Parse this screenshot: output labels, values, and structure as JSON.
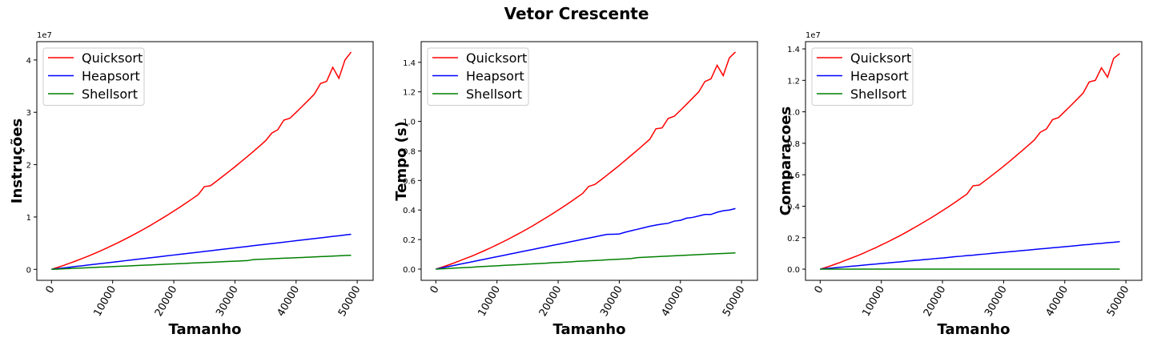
{
  "title": "Vetor Crescente",
  "chart_data": [
    {
      "type": "line",
      "ylabel": "Instruções",
      "xlabel": "Tamanho",
      "offset_label": "1e7",
      "legend": "upper left",
      "grid": false,
      "x": [
        0,
        1000,
        2000,
        3000,
        4000,
        5000,
        6000,
        7000,
        8000,
        9000,
        10000,
        11000,
        12000,
        13000,
        14000,
        15000,
        16000,
        17000,
        18000,
        19000,
        20000,
        21000,
        22000,
        23000,
        24000,
        25000,
        26000,
        27000,
        28000,
        29000,
        30000,
        31000,
        32000,
        33000,
        34000,
        35000,
        36000,
        37000,
        38000,
        39000,
        40000,
        41000,
        42000,
        43000,
        44000,
        45000,
        46000,
        47000,
        48000,
        49000
      ],
      "xlim": [
        -2400,
        52600
      ],
      "ylim": [
        -0.21,
        4.35
      ],
      "xticks": [
        0,
        10000,
        20000,
        30000,
        40000,
        50000
      ],
      "yticks": [
        0,
        1,
        2,
        3,
        4
      ],
      "series": [
        {
          "name": "Quicksort",
          "color": "#ff0000",
          "values": [
            0,
            0.037,
            0.076,
            0.118,
            0.161,
            0.206,
            0.252,
            0.301,
            0.352,
            0.405,
            0.46,
            0.516,
            0.575,
            0.635,
            0.698,
            0.762,
            0.828,
            0.897,
            0.967,
            1.039,
            1.113,
            1.189,
            1.267,
            1.346,
            1.428,
            1.58,
            1.598,
            1.685,
            1.775,
            1.866,
            1.959,
            2.055,
            2.152,
            2.251,
            2.352,
            2.455,
            2.6,
            2.667,
            2.85,
            2.887,
            2.999,
            3.114,
            3.23,
            3.349,
            3.55,
            3.592,
            3.86,
            3.65,
            4.0,
            4.15
          ]
        },
        {
          "name": "Heapsort",
          "color": "#0000ff",
          "values": [
            0,
            0.014,
            0.027,
            0.041,
            0.055,
            0.068,
            0.082,
            0.096,
            0.109,
            0.123,
            0.137,
            0.15,
            0.164,
            0.178,
            0.191,
            0.205,
            0.219,
            0.232,
            0.246,
            0.26,
            0.273,
            0.287,
            0.301,
            0.314,
            0.328,
            0.342,
            0.355,
            0.369,
            0.383,
            0.396,
            0.41,
            0.424,
            0.437,
            0.451,
            0.465,
            0.478,
            0.492,
            0.506,
            0.519,
            0.533,
            0.547,
            0.56,
            0.574,
            0.588,
            0.601,
            0.615,
            0.629,
            0.642,
            0.656,
            0.67
          ]
        },
        {
          "name": "Shellsort",
          "color": "#008000",
          "values": [
            0,
            0.005,
            0.01,
            0.016,
            0.021,
            0.026,
            0.031,
            0.036,
            0.042,
            0.047,
            0.052,
            0.057,
            0.062,
            0.068,
            0.073,
            0.078,
            0.083,
            0.088,
            0.094,
            0.099,
            0.104,
            0.109,
            0.114,
            0.12,
            0.125,
            0.13,
            0.135,
            0.14,
            0.146,
            0.151,
            0.156,
            0.161,
            0.166,
            0.186,
            0.191,
            0.196,
            0.201,
            0.206,
            0.212,
            0.217,
            0.222,
            0.227,
            0.232,
            0.238,
            0.243,
            0.248,
            0.253,
            0.258,
            0.264,
            0.269
          ]
        }
      ]
    },
    {
      "type": "line",
      "ylabel": "Tempo (s)",
      "xlabel": "Tamanho",
      "legend": "upper left",
      "grid": false,
      "x": [
        0,
        1000,
        2000,
        3000,
        4000,
        5000,
        6000,
        7000,
        8000,
        9000,
        10000,
        11000,
        12000,
        13000,
        14000,
        15000,
        16000,
        17000,
        18000,
        19000,
        20000,
        21000,
        22000,
        23000,
        24000,
        25000,
        26000,
        27000,
        28000,
        29000,
        30000,
        31000,
        32000,
        33000,
        34000,
        35000,
        36000,
        37000,
        38000,
        39000,
        40000,
        41000,
        42000,
        43000,
        44000,
        45000,
        46000,
        47000,
        48000,
        49000
      ],
      "xlim": [
        -2400,
        52600
      ],
      "ylim": [
        -0.076,
        1.54
      ],
      "xticks": [
        0,
        10000,
        20000,
        30000,
        40000,
        50000
      ],
      "yticks": [
        {
          "value": 0,
          "label": "0.0"
        },
        0.2,
        0.4,
        0.6,
        0.8,
        {
          "value": 1,
          "label": "1.0"
        },
        1.2,
        1.4
      ],
      "series": [
        {
          "name": "Quicksort",
          "color": "#ff0000",
          "values": [
            0,
            0.013,
            0.027,
            0.042,
            0.058,
            0.074,
            0.09,
            0.108,
            0.126,
            0.145,
            0.165,
            0.185,
            0.206,
            0.228,
            0.25,
            0.273,
            0.297,
            0.322,
            0.347,
            0.373,
            0.399,
            0.426,
            0.454,
            0.483,
            0.512,
            0.56,
            0.573,
            0.604,
            0.636,
            0.669,
            0.702,
            0.737,
            0.772,
            0.807,
            0.843,
            0.88,
            0.95,
            0.956,
            1.02,
            1.035,
            1.075,
            1.116,
            1.158,
            1.2,
            1.27,
            1.288,
            1.38,
            1.31,
            1.43,
            1.47
          ]
        },
        {
          "name": "Heapsort",
          "color": "#0000ff",
          "values": [
            0,
            0.008,
            0.017,
            0.025,
            0.034,
            0.042,
            0.05,
            0.059,
            0.067,
            0.076,
            0.084,
            0.092,
            0.101,
            0.109,
            0.118,
            0.126,
            0.134,
            0.143,
            0.151,
            0.16,
            0.168,
            0.176,
            0.185,
            0.193,
            0.202,
            0.21,
            0.218,
            0.227,
            0.235,
            0.236,
            0.238,
            0.25,
            0.26,
            0.27,
            0.28,
            0.29,
            0.298,
            0.305,
            0.31,
            0.325,
            0.33,
            0.345,
            0.35,
            0.36,
            0.37,
            0.37,
            0.385,
            0.395,
            0.4,
            0.41
          ]
        },
        {
          "name": "Shellsort",
          "color": "#008000",
          "values": [
            0,
            0.002,
            0.004,
            0.007,
            0.009,
            0.011,
            0.013,
            0.016,
            0.018,
            0.02,
            0.022,
            0.025,
            0.027,
            0.029,
            0.031,
            0.034,
            0.036,
            0.038,
            0.04,
            0.043,
            0.045,
            0.047,
            0.049,
            0.052,
            0.054,
            0.056,
            0.058,
            0.06,
            0.063,
            0.065,
            0.067,
            0.069,
            0.072,
            0.078,
            0.08,
            0.082,
            0.084,
            0.086,
            0.088,
            0.09,
            0.092,
            0.094,
            0.096,
            0.098,
            0.1,
            0.102,
            0.104,
            0.106,
            0.108,
            0.11
          ]
        }
      ]
    },
    {
      "type": "line",
      "ylabel": "Comparacoes",
      "xlabel": "Tamanho",
      "offset_label": "1e7",
      "legend": "upper left",
      "grid": false,
      "x": [
        0,
        1000,
        2000,
        3000,
        4000,
        5000,
        6000,
        7000,
        8000,
        9000,
        10000,
        11000,
        12000,
        13000,
        14000,
        15000,
        16000,
        17000,
        18000,
        19000,
        20000,
        21000,
        22000,
        23000,
        24000,
        25000,
        26000,
        27000,
        28000,
        29000,
        30000,
        31000,
        32000,
        33000,
        34000,
        35000,
        36000,
        37000,
        38000,
        39000,
        40000,
        41000,
        42000,
        43000,
        44000,
        45000,
        46000,
        47000,
        48000,
        49000
      ],
      "xlim": [
        -2400,
        52600
      ],
      "ylim": [
        -0.071,
        1.446
      ],
      "xticks": [
        0,
        10000,
        20000,
        30000,
        40000,
        50000
      ],
      "yticks": [
        {
          "value": 0,
          "label": "0.0"
        },
        0.2,
        0.4,
        0.6,
        0.8,
        {
          "value": 1,
          "label": "1.0"
        },
        1.2,
        1.4
      ],
      "series": [
        {
          "name": "Quicksort",
          "color": "#ff0000",
          "values": [
            0,
            0.012,
            0.025,
            0.039,
            0.054,
            0.069,
            0.084,
            0.1,
            0.118,
            0.135,
            0.154,
            0.172,
            0.192,
            0.212,
            0.233,
            0.255,
            0.277,
            0.3,
            0.323,
            0.347,
            0.372,
            0.397,
            0.423,
            0.45,
            0.477,
            0.53,
            0.534,
            0.563,
            0.593,
            0.623,
            0.654,
            0.686,
            0.719,
            0.752,
            0.786,
            0.82,
            0.87,
            0.891,
            0.95,
            0.964,
            1.002,
            1.04,
            1.079,
            1.119,
            1.19,
            1.2,
            1.28,
            1.22,
            1.34,
            1.37
          ]
        },
        {
          "name": "Heapsort",
          "color": "#0000ff",
          "values": [
            0,
            0.004,
            0.007,
            0.011,
            0.014,
            0.018,
            0.021,
            0.025,
            0.029,
            0.032,
            0.036,
            0.039,
            0.043,
            0.046,
            0.05,
            0.054,
            0.057,
            0.061,
            0.064,
            0.068,
            0.071,
            0.075,
            0.079,
            0.082,
            0.086,
            0.089,
            0.093,
            0.096,
            0.1,
            0.104,
            0.107,
            0.111,
            0.114,
            0.118,
            0.121,
            0.125,
            0.129,
            0.132,
            0.136,
            0.139,
            0.143,
            0.146,
            0.15,
            0.154,
            0.157,
            0.161,
            0.164,
            0.168,
            0.171,
            0.175
          ]
        },
        {
          "name": "Shellsort",
          "color": "#008000",
          "values": [
            0,
            0,
            0,
            0,
            0,
            0,
            0,
            0,
            0,
            0,
            0,
            0,
            0,
            0,
            0,
            0,
            0,
            0,
            0,
            0,
            0,
            0,
            0,
            0,
            0,
            0,
            0,
            0,
            0,
            0,
            0,
            0,
            0,
            0,
            0,
            0,
            0,
            0,
            0,
            0,
            0,
            0,
            0,
            0,
            0,
            0,
            0,
            0,
            0,
            0
          ]
        }
      ]
    }
  ]
}
